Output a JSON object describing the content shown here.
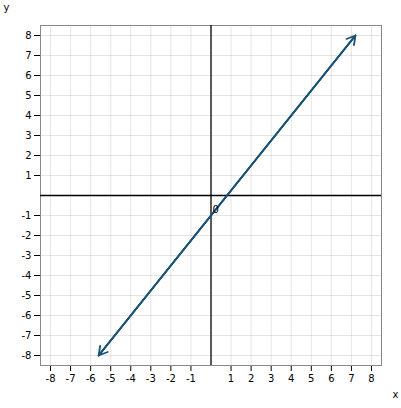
{
  "chart_data": {
    "type": "line",
    "xlabel": "x",
    "ylabel": "y",
    "x": [
      -5.6,
      7.2
    ],
    "values": [
      -8,
      8
    ],
    "color": "#1a5276",
    "xlim": [
      -8.5,
      8.5
    ],
    "ylim": [
      -8.5,
      8.5
    ],
    "xticks": [
      -8,
      -7,
      -6,
      -5,
      -4,
      -3,
      -2,
      -1,
      1,
      2,
      3,
      4,
      5,
      6,
      7,
      8
    ],
    "yticks": [
      -8,
      -7,
      -6,
      -5,
      -4,
      -3,
      -2,
      -1,
      1,
      2,
      3,
      4,
      5,
      6,
      7,
      8
    ],
    "grid": true,
    "annotations": [
      {
        "text": "0",
        "x": 0.08,
        "y": -0.5
      }
    ]
  }
}
